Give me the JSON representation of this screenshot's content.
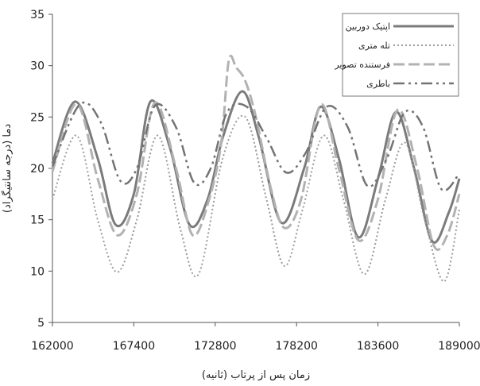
{
  "chart_data": {
    "type": "line",
    "xlabel": "زمان پس از پرتاب (ثانیه)",
    "ylabel": "دما (درجه سانتیگراد)",
    "xlim": [
      162000,
      189000
    ],
    "ylim": [
      5,
      35
    ],
    "xticks": [
      162000,
      167400,
      172800,
      178200,
      183600,
      189000
    ],
    "yticks": [
      5,
      10,
      15,
      20,
      25,
      30,
      35
    ],
    "grid": false,
    "legend_position": "top-right",
    "series": [
      {
        "name": "اپتیک دوربین",
        "color": "#7b7b7b",
        "dash": "",
        "width": 3,
        "x": [
          162000,
          163500,
          165000,
          166200,
          167400,
          168500,
          169800,
          171100,
          172300,
          173300,
          174600,
          175700,
          177200,
          178700,
          179800,
          181000,
          182300,
          183600,
          184800,
          186000,
          187200,
          188300,
          189000
        ],
        "y": [
          20.5,
          26.5,
          21,
          14.5,
          17.5,
          26.5,
          22,
          14.5,
          17,
          23,
          27.5,
          23,
          14.7,
          20,
          26,
          21,
          13.3,
          19,
          25.5,
          20,
          12.9,
          15.7,
          19
        ]
      },
      {
        "name": "تله متری",
        "color": "#9a9a9a",
        "dash": "2,3",
        "width": 2,
        "x": [
          162000,
          163600,
          165000,
          166300,
          167600,
          169000,
          170500,
          171700,
          173300,
          174800,
          176200,
          177400,
          178600,
          180000,
          181300,
          182700,
          184100,
          185400,
          186700,
          188000,
          189000
        ],
        "y": [
          17,
          23.2,
          15,
          9.9,
          15,
          23.2,
          14,
          9.7,
          21,
          25,
          17,
          10.5,
          16,
          23.2,
          17,
          9.7,
          17,
          22.5,
          15,
          9,
          16
        ]
      },
      {
        "name": "فرستنده تصویر",
        "color": "#b2b2b2",
        "dash": "14,5",
        "width": 3,
        "x": [
          162000,
          163600,
          165000,
          166300,
          167600,
          168800,
          170200,
          171300,
          172400,
          173200,
          173700,
          174200,
          174800,
          175500,
          176500,
          177400,
          178500,
          179800,
          181000,
          182300,
          183600,
          184900,
          186200,
          187300,
          188200,
          189000
        ],
        "y": [
          19.7,
          26.3,
          19,
          13.5,
          17.5,
          26.4,
          20,
          13.5,
          17,
          22.5,
          30.5,
          29.8,
          28.5,
          25,
          18,
          14.2,
          17,
          26.2,
          20,
          13,
          17,
          25.7,
          20,
          12.5,
          13.5,
          17.5
        ]
      },
      {
        "name": "باطری",
        "color": "#737373",
        "dash": "14,5,3,5,3,5",
        "width": 2.5,
        "x": [
          162000,
          163800,
          165200,
          166500,
          167600,
          168800,
          170200,
          171400,
          172500,
          173600,
          174900,
          176200,
          177500,
          178800,
          180200,
          181600,
          182900,
          184200,
          185400,
          186600,
          187800,
          189000
        ],
        "y": [
          20.2,
          26.2,
          24.5,
          18.8,
          20,
          26.1,
          24,
          18.6,
          20,
          25.5,
          26,
          23,
          19.6,
          21.5,
          26,
          24,
          18.3,
          21,
          25.5,
          24,
          18,
          19.5
        ]
      }
    ]
  }
}
